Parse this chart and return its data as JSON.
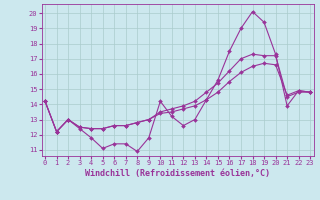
{
  "xlabel": "Windchill (Refroidissement éolien,°C)",
  "background_color": "#cce8ee",
  "line_color": "#993399",
  "grid_color": "#aacccc",
  "x_ticks": [
    0,
    1,
    2,
    3,
    4,
    5,
    6,
    7,
    8,
    9,
    10,
    11,
    12,
    13,
    14,
    15,
    16,
    17,
    18,
    19,
    20,
    21,
    22,
    23
  ],
  "y_ticks": [
    11,
    12,
    13,
    14,
    15,
    16,
    17,
    18,
    19,
    20
  ],
  "ylim": [
    10.6,
    20.6
  ],
  "xlim": [
    -0.3,
    23.3
  ],
  "series1_y": [
    14.2,
    12.2,
    13.0,
    12.4,
    11.8,
    11.1,
    11.4,
    11.4,
    10.9,
    11.8,
    14.2,
    13.2,
    12.6,
    13.0,
    14.3,
    15.6,
    17.5,
    19.0,
    20.1,
    19.4,
    17.3,
    13.9,
    14.9,
    14.8
  ],
  "series2_y": [
    14.2,
    12.2,
    13.0,
    12.5,
    12.4,
    12.4,
    12.6,
    12.6,
    12.8,
    13.0,
    13.5,
    13.7,
    13.9,
    14.2,
    14.8,
    15.4,
    16.2,
    17.0,
    17.3,
    17.2,
    17.2,
    14.5,
    14.8,
    14.8
  ],
  "series3_y": [
    14.2,
    12.2,
    13.0,
    12.5,
    12.4,
    12.4,
    12.6,
    12.6,
    12.8,
    13.0,
    13.4,
    13.5,
    13.7,
    13.9,
    14.3,
    14.8,
    15.5,
    16.1,
    16.5,
    16.7,
    16.6,
    14.6,
    14.9,
    14.8
  ],
  "marker": "D",
  "markersize": 2.0,
  "linewidth": 0.8,
  "tick_fontsize": 5.0,
  "label_fontsize": 6.0
}
